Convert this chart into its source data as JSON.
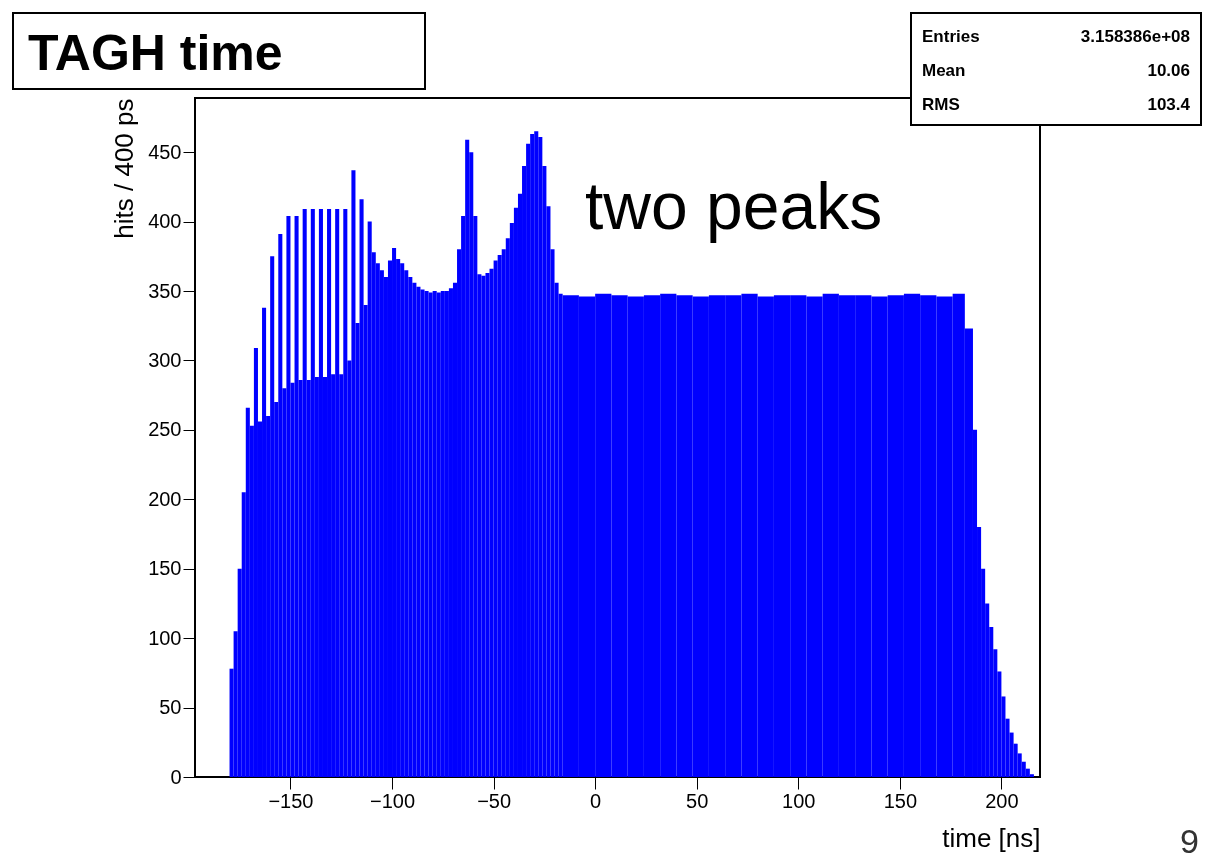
{
  "chart_data": {
    "type": "histogram",
    "title": "TAGH time",
    "xlabel": "time [ns]",
    "ylabel": "hits / 400 ps",
    "color": "#0000ff",
    "xlim": [
      -197,
      219
    ],
    "ylim": [
      0,
      489
    ],
    "xticks": [
      -150,
      -100,
      -50,
      0,
      50,
      100,
      150,
      200
    ],
    "yticks": [
      0,
      50,
      100,
      150,
      200,
      250,
      300,
      350,
      400,
      450
    ],
    "bins": [
      -180,
      -178,
      -176,
      -174,
      -172,
      -170,
      -168,
      -166,
      -164,
      -162,
      -160,
      -158,
      -156,
      -154,
      -152,
      -150,
      -148,
      -146,
      -144,
      -142,
      -140,
      -138,
      -136,
      -134,
      -132,
      -130,
      -128,
      -126,
      -124,
      -122,
      -120,
      -118,
      -116,
      -114,
      -112,
      -110,
      -108,
      -106,
      -104,
      -102,
      -100,
      -98,
      -96,
      -94,
      -92,
      -90,
      -88,
      -86,
      -84,
      -82,
      -80,
      -78,
      -76,
      -74,
      -72,
      -70,
      -68,
      -66,
      -64,
      -62,
      -60,
      -58,
      -56,
      -54,
      -52,
      -50,
      -48,
      -46,
      -44,
      -42,
      -40,
      -38,
      -36,
      -34,
      -32,
      -30,
      -28,
      -26,
      -24,
      -22,
      -20,
      -18,
      -16,
      -8,
      0,
      8,
      16,
      24,
      32,
      40,
      48,
      56,
      64,
      72,
      80,
      88,
      96,
      104,
      112,
      120,
      128,
      136,
      144,
      152,
      160,
      168,
      176,
      182,
      186,
      188,
      190,
      192,
      194,
      196,
      198,
      200,
      202,
      204,
      206,
      208,
      210,
      212,
      214,
      216
    ],
    "values": [
      78,
      105,
      150,
      205,
      266,
      253,
      309,
      256,
      338,
      260,
      375,
      270,
      391,
      280,
      404,
      284,
      404,
      286,
      409,
      286,
      409,
      288,
      409,
      288,
      409,
      290,
      409,
      290,
      409,
      300,
      437,
      327,
      416,
      340,
      400,
      378,
      370,
      365,
      360,
      372,
      381,
      373,
      370,
      365,
      360,
      356,
      353,
      351,
      350,
      349,
      350,
      349,
      350,
      350,
      352,
      356,
      380,
      404,
      459,
      450,
      404,
      362,
      361,
      363,
      366,
      372,
      376,
      380,
      388,
      399,
      410,
      420,
      440,
      456,
      463,
      465,
      461,
      440,
      411,
      380,
      356,
      348,
      347,
      346,
      348,
      347,
      346,
      347,
      348,
      347,
      346,
      347,
      347,
      348,
      346,
      347,
      347,
      346,
      348,
      347,
      347,
      346,
      347,
      348,
      347,
      346,
      348,
      323,
      250,
      180,
      150,
      125,
      108,
      92,
      76,
      58,
      42,
      32,
      24,
      17,
      11,
      6,
      2
    ],
    "annotations": [
      "two peaks",
      "Entries",
      "3.158386e+08",
      "Mean",
      "10.06",
      "RMS",
      "103.4",
      "9"
    ]
  }
}
